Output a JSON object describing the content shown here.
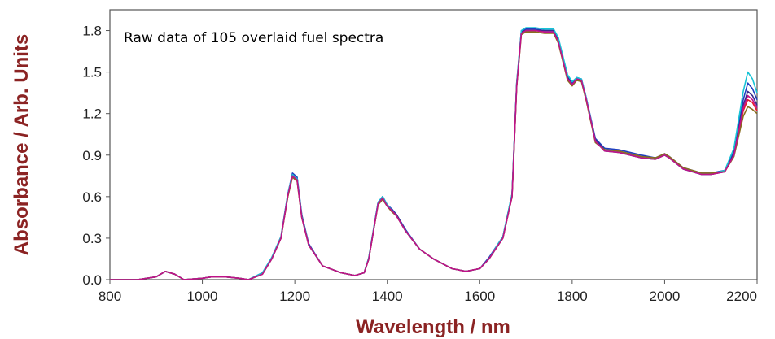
{
  "chart_data": {
    "type": "line",
    "title": "",
    "annotation": "Raw data of 105 overlaid fuel spectra",
    "xlabel": "Wavelength / nm",
    "ylabel": "Absorbance / Arb. Units",
    "xlim": [
      800,
      2200
    ],
    "ylim": [
      0.0,
      1.95
    ],
    "xticks": [
      800,
      1000,
      1200,
      1400,
      1600,
      1800,
      2000,
      2200
    ],
    "yticks": [
      0.0,
      0.3,
      0.6,
      0.9,
      1.2,
      1.5,
      1.8
    ],
    "ytick_labels": [
      "0.0",
      "0.3",
      "0.6",
      "0.9",
      "1.2",
      "1.5",
      "1.8"
    ],
    "grid": false,
    "legend": "none",
    "x": [
      800,
      860,
      900,
      920,
      940,
      960,
      1000,
      1020,
      1050,
      1080,
      1100,
      1130,
      1150,
      1170,
      1185,
      1195,
      1205,
      1215,
      1230,
      1260,
      1300,
      1330,
      1350,
      1360,
      1370,
      1380,
      1390,
      1400,
      1410,
      1420,
      1440,
      1470,
      1500,
      1540,
      1570,
      1600,
      1620,
      1640,
      1650,
      1670,
      1680,
      1690,
      1700,
      1720,
      1740,
      1760,
      1770,
      1790,
      1800,
      1810,
      1820,
      1830,
      1850,
      1870,
      1900,
      1950,
      1980,
      2000,
      2010,
      2040,
      2080,
      2100,
      2130,
      2150,
      2170,
      2180,
      2190,
      2200
    ],
    "series": [
      {
        "color": "#e8192c",
        "values": [
          0.0,
          0.0,
          0.02,
          0.06,
          0.04,
          0.0,
          0.01,
          0.02,
          0.02,
          0.01,
          0.0,
          0.04,
          0.15,
          0.3,
          0.6,
          0.75,
          0.72,
          0.45,
          0.25,
          0.1,
          0.05,
          0.03,
          0.05,
          0.15,
          0.35,
          0.55,
          0.59,
          0.53,
          0.5,
          0.46,
          0.35,
          0.22,
          0.15,
          0.08,
          0.06,
          0.08,
          0.15,
          0.25,
          0.3,
          0.6,
          1.4,
          1.78,
          1.8,
          1.8,
          1.79,
          1.79,
          1.72,
          1.45,
          1.4,
          1.45,
          1.44,
          1.3,
          1.0,
          0.93,
          0.92,
          0.88,
          0.87,
          0.9,
          0.88,
          0.8,
          0.76,
          0.76,
          0.78,
          0.9,
          1.22,
          1.3,
          1.28,
          1.22
        ]
      },
      {
        "color": "#1f3fbf",
        "values": [
          0.0,
          0.0,
          0.02,
          0.06,
          0.04,
          0.0,
          0.01,
          0.02,
          0.02,
          0.01,
          0.0,
          0.05,
          0.16,
          0.31,
          0.62,
          0.77,
          0.74,
          0.47,
          0.26,
          0.1,
          0.05,
          0.03,
          0.05,
          0.16,
          0.36,
          0.56,
          0.6,
          0.54,
          0.51,
          0.47,
          0.36,
          0.22,
          0.15,
          0.08,
          0.06,
          0.08,
          0.16,
          0.26,
          0.31,
          0.62,
          1.42,
          1.79,
          1.81,
          1.81,
          1.8,
          1.8,
          1.74,
          1.47,
          1.42,
          1.46,
          1.45,
          1.32,
          1.02,
          0.95,
          0.94,
          0.9,
          0.88,
          0.91,
          0.89,
          0.81,
          0.77,
          0.77,
          0.79,
          0.93,
          1.3,
          1.42,
          1.38,
          1.3
        ]
      },
      {
        "color": "#3a2a8c",
        "values": [
          0.0,
          0.0,
          0.02,
          0.06,
          0.04,
          0.0,
          0.01,
          0.02,
          0.02,
          0.01,
          0.0,
          0.04,
          0.15,
          0.3,
          0.61,
          0.76,
          0.73,
          0.46,
          0.25,
          0.1,
          0.05,
          0.03,
          0.05,
          0.15,
          0.35,
          0.55,
          0.6,
          0.54,
          0.5,
          0.47,
          0.35,
          0.22,
          0.15,
          0.08,
          0.06,
          0.08,
          0.15,
          0.25,
          0.3,
          0.61,
          1.41,
          1.79,
          1.8,
          1.8,
          1.8,
          1.8,
          1.73,
          1.46,
          1.41,
          1.45,
          1.44,
          1.31,
          1.01,
          0.94,
          0.93,
          0.89,
          0.88,
          0.9,
          0.88,
          0.8,
          0.76,
          0.76,
          0.78,
          0.91,
          1.26,
          1.36,
          1.33,
          1.26
        ]
      },
      {
        "color": "#17c3d6",
        "values": [
          0.0,
          0.0,
          0.02,
          0.06,
          0.04,
          0.0,
          0.01,
          0.02,
          0.02,
          0.01,
          0.0,
          0.05,
          0.16,
          0.31,
          0.62,
          0.76,
          0.73,
          0.46,
          0.25,
          0.1,
          0.05,
          0.03,
          0.05,
          0.16,
          0.36,
          0.56,
          0.6,
          0.54,
          0.5,
          0.46,
          0.35,
          0.22,
          0.15,
          0.08,
          0.06,
          0.08,
          0.15,
          0.26,
          0.31,
          0.62,
          1.42,
          1.8,
          1.82,
          1.82,
          1.81,
          1.81,
          1.75,
          1.48,
          1.43,
          1.46,
          1.45,
          1.32,
          1.0,
          0.93,
          0.92,
          0.88,
          0.87,
          0.9,
          0.88,
          0.8,
          0.76,
          0.76,
          0.79,
          0.95,
          1.36,
          1.5,
          1.45,
          1.35
        ]
      },
      {
        "color": "#8a6d1f",
        "values": [
          0.0,
          0.0,
          0.02,
          0.06,
          0.04,
          0.0,
          0.01,
          0.02,
          0.02,
          0.01,
          0.0,
          0.04,
          0.15,
          0.3,
          0.6,
          0.74,
          0.71,
          0.45,
          0.25,
          0.1,
          0.05,
          0.03,
          0.05,
          0.15,
          0.35,
          0.54,
          0.58,
          0.53,
          0.49,
          0.46,
          0.35,
          0.22,
          0.15,
          0.08,
          0.06,
          0.08,
          0.15,
          0.25,
          0.3,
          0.6,
          1.39,
          1.77,
          1.79,
          1.79,
          1.78,
          1.78,
          1.71,
          1.44,
          1.4,
          1.44,
          1.43,
          1.3,
          0.99,
          0.94,
          0.93,
          0.89,
          0.88,
          0.91,
          0.89,
          0.81,
          0.77,
          0.77,
          0.78,
          0.89,
          1.18,
          1.25,
          1.23,
          1.2
        ]
      },
      {
        "color": "#c0128a",
        "values": [
          0.0,
          0.0,
          0.02,
          0.06,
          0.04,
          0.0,
          0.01,
          0.02,
          0.02,
          0.01,
          0.0,
          0.04,
          0.15,
          0.3,
          0.61,
          0.75,
          0.72,
          0.45,
          0.25,
          0.1,
          0.05,
          0.03,
          0.05,
          0.15,
          0.35,
          0.55,
          0.59,
          0.53,
          0.5,
          0.46,
          0.35,
          0.22,
          0.15,
          0.08,
          0.06,
          0.08,
          0.15,
          0.25,
          0.3,
          0.6,
          1.4,
          1.78,
          1.8,
          1.8,
          1.79,
          1.79,
          1.72,
          1.45,
          1.41,
          1.45,
          1.44,
          1.31,
          1.0,
          0.93,
          0.92,
          0.88,
          0.87,
          0.9,
          0.88,
          0.8,
          0.76,
          0.76,
          0.78,
          0.9,
          1.24,
          1.33,
          1.3,
          1.24
        ]
      }
    ]
  }
}
